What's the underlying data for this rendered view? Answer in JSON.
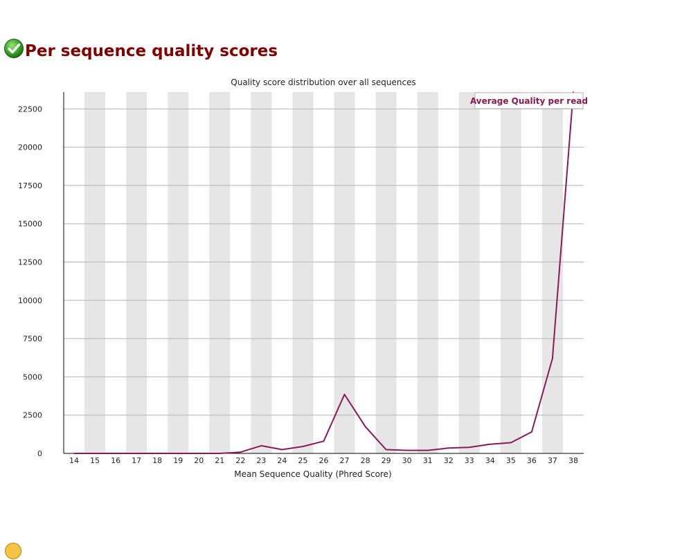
{
  "section": {
    "title": "Per sequence quality scores",
    "status_icon": "pass-check-icon"
  },
  "next_section": {
    "status_icon": "warning-icon"
  },
  "colors": {
    "title": "#800000",
    "series": "#8b1a50",
    "band": "#e6e6e6",
    "grid": "#b4b4b4"
  },
  "chart_data": {
    "type": "line",
    "title": "Quality score distribution over all sequences",
    "xlabel": "Mean Sequence Quality (Phred Score)",
    "ylabel": "",
    "categories": [
      "14",
      "15",
      "16",
      "17",
      "18",
      "19",
      "20",
      "21",
      "22",
      "23",
      "24",
      "25",
      "26",
      "27",
      "28",
      "29",
      "30",
      "31",
      "32",
      "33",
      "34",
      "35",
      "36",
      "37",
      "38"
    ],
    "series": [
      {
        "name": "Average Quality per read",
        "values": [
          0,
          0,
          0,
          0,
          0,
          0,
          0,
          0,
          80,
          500,
          250,
          450,
          800,
          3850,
          1750,
          250,
          200,
          200,
          350,
          400,
          600,
          700,
          1400,
          6200,
          23600
        ]
      }
    ],
    "ylim": [
      0,
      23600
    ],
    "yticks": [
      0,
      2500,
      5000,
      7500,
      10000,
      12500,
      15000,
      17500,
      20000,
      22500
    ],
    "grid": true,
    "alternating_bands": true,
    "legend": "top-right"
  }
}
